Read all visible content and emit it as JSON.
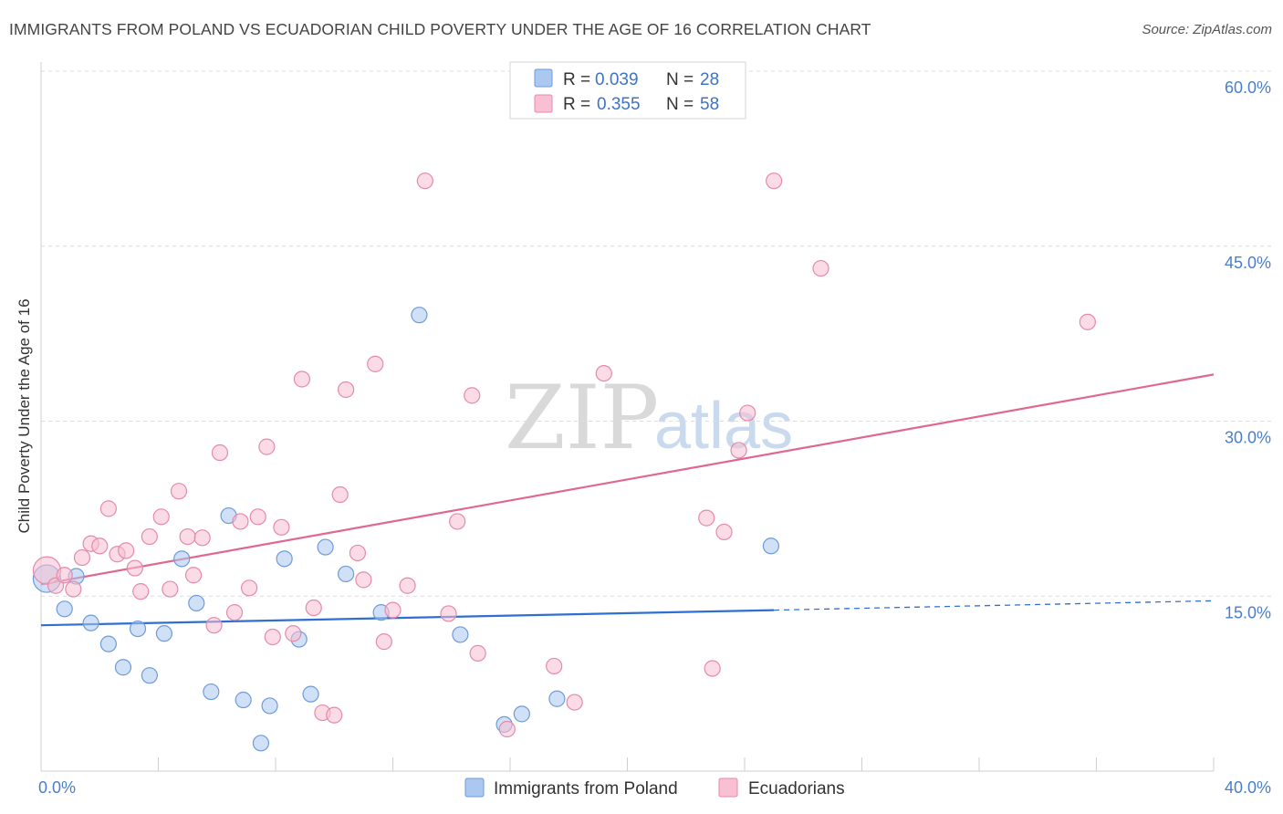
{
  "header": {
    "title": "IMMIGRANTS FROM POLAND VS ECUADORIAN CHILD POVERTY UNDER THE AGE OF 16 CORRELATION CHART",
    "source": "Source: ZipAtlas.com"
  },
  "watermark": {
    "zip": "ZIP",
    "atlas": "atlas"
  },
  "legend": {
    "rows": [
      {
        "r_label": "R =",
        "r_value": "0.039",
        "n_label": "N =",
        "n_value": "28",
        "color": "#aac8f0",
        "stroke": "#6f9bd8"
      },
      {
        "r_label": "R =",
        "r_value": "0.355",
        "n_label": "N =",
        "n_value": "58",
        "color": "#f8c0d2",
        "stroke": "#e58aa8"
      }
    ]
  },
  "bottom_legend": [
    {
      "label": "Immigrants from Poland",
      "color": "#aac8f0",
      "stroke": "#6f9bd8"
    },
    {
      "label": "Ecuadorians",
      "color": "#f8c0d2",
      "stroke": "#e58aa8"
    }
  ],
  "chart_data": {
    "type": "scatter",
    "title": "IMMIGRANTS FROM POLAND VS ECUADORIAN CHILD POVERTY UNDER THE AGE OF 16 CORRELATION CHART",
    "xlabel": "",
    "ylabel": "Child Poverty Under the Age of 16",
    "xlim": [
      0,
      40
    ],
    "ylim": [
      0,
      60
    ],
    "x_tick_labels": [
      "0.0%",
      "40.0%"
    ],
    "y_ticks": [
      15,
      30,
      45,
      60
    ],
    "y_tick_labels": [
      "15.0%",
      "30.0%",
      "45.0%",
      "60.0%"
    ],
    "grid": true,
    "legend_placement": "top-center",
    "series": [
      {
        "name": "Immigrants from Poland",
        "color": "#6f9bd8",
        "fill": "#aac8f0",
        "line_color": "#2f6fd0",
        "trend": {
          "x0": 0,
          "y0": 12.5,
          "x1": 25,
          "y1": 13.8,
          "dash_to": 40,
          "dash_y": 14.6
        },
        "points": [
          [
            0.2,
            16.5
          ],
          [
            1.2,
            16.7
          ],
          [
            0.8,
            13.9
          ],
          [
            1.7,
            12.7
          ],
          [
            2.3,
            10.9
          ],
          [
            2.8,
            8.9
          ],
          [
            3.3,
            12.2
          ],
          [
            3.7,
            8.2
          ],
          [
            4.2,
            11.8
          ],
          [
            4.8,
            18.2
          ],
          [
            5.3,
            14.4
          ],
          [
            5.8,
            6.8
          ],
          [
            6.4,
            21.9
          ],
          [
            6.9,
            6.1
          ],
          [
            7.5,
            2.4
          ],
          [
            7.8,
            5.6
          ],
          [
            8.3,
            18.2
          ],
          [
            8.8,
            11.3
          ],
          [
            9.2,
            6.6
          ],
          [
            9.7,
            19.2
          ],
          [
            10.4,
            16.9
          ],
          [
            11.6,
            13.6
          ],
          [
            12.9,
            39.1
          ],
          [
            14.3,
            11.7
          ],
          [
            15.8,
            4.0
          ],
          [
            16.4,
            4.9
          ],
          [
            17.6,
            6.2
          ],
          [
            24.9,
            19.3
          ]
        ]
      },
      {
        "name": "Ecuadorians",
        "color": "#e58aa8",
        "fill": "#f8c0d2",
        "line_color": "#e06890",
        "trend": {
          "x0": 0,
          "y0": 16.0,
          "x1": 40,
          "y1": 34.0
        },
        "points": [
          [
            0.2,
            17.2
          ],
          [
            0.5,
            15.9
          ],
          [
            0.8,
            16.8
          ],
          [
            1.1,
            15.6
          ],
          [
            1.4,
            18.3
          ],
          [
            1.7,
            19.5
          ],
          [
            2.0,
            19.3
          ],
          [
            2.3,
            22.5
          ],
          [
            2.6,
            18.6
          ],
          [
            2.9,
            18.9
          ],
          [
            3.2,
            17.4
          ],
          [
            3.4,
            15.4
          ],
          [
            3.7,
            20.1
          ],
          [
            4.1,
            21.8
          ],
          [
            4.4,
            15.6
          ],
          [
            4.7,
            24.0
          ],
          [
            5.0,
            20.1
          ],
          [
            5.2,
            16.8
          ],
          [
            5.5,
            20.0
          ],
          [
            5.9,
            12.5
          ],
          [
            6.1,
            27.3
          ],
          [
            6.6,
            13.6
          ],
          [
            6.8,
            21.4
          ],
          [
            7.1,
            15.7
          ],
          [
            7.4,
            21.8
          ],
          [
            7.7,
            27.8
          ],
          [
            7.9,
            11.5
          ],
          [
            8.2,
            20.9
          ],
          [
            8.6,
            11.8
          ],
          [
            8.9,
            33.6
          ],
          [
            9.3,
            14.0
          ],
          [
            9.6,
            5.0
          ],
          [
            10.0,
            4.8
          ],
          [
            10.2,
            23.7
          ],
          [
            10.4,
            32.7
          ],
          [
            10.8,
            18.7
          ],
          [
            11.0,
            16.4
          ],
          [
            11.4,
            34.9
          ],
          [
            11.7,
            11.1
          ],
          [
            12.0,
            13.8
          ],
          [
            12.5,
            15.9
          ],
          [
            13.1,
            50.6
          ],
          [
            13.9,
            13.5
          ],
          [
            14.2,
            21.4
          ],
          [
            14.7,
            32.2
          ],
          [
            14.9,
            10.1
          ],
          [
            15.9,
            3.6
          ],
          [
            17.5,
            9.0
          ],
          [
            18.2,
            5.9
          ],
          [
            19.2,
            34.1
          ],
          [
            22.7,
            21.7
          ],
          [
            22.9,
            8.8
          ],
          [
            23.3,
            20.5
          ],
          [
            23.8,
            27.5
          ],
          [
            24.1,
            30.7
          ],
          [
            25.0,
            50.6
          ],
          [
            26.6,
            43.1
          ],
          [
            35.7,
            38.5
          ]
        ]
      }
    ]
  }
}
